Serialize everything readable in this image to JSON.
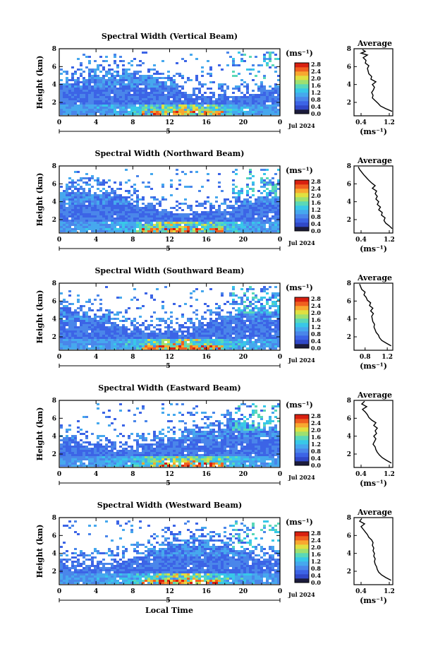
{
  "figure": {
    "xlabel_bottom": "Local Time"
  },
  "colorbar": {
    "unit": "(ms⁻¹)",
    "colors": [
      "#1c1c3c",
      "#3048c8",
      "#3c64e6",
      "#4a86ea",
      "#46a8ee",
      "#38c8e8",
      "#5ad8b8",
      "#9ee070",
      "#e0e040",
      "#f8a830",
      "#f06020",
      "#d82010"
    ]
  },
  "chart_data": [
    {
      "type": "heatmap",
      "title": "Spectral Width (Vertical Beam)",
      "ylabel": "Height (km)",
      "y_ticks": [
        "2",
        "4",
        "6",
        "8"
      ],
      "x_ticks": [
        "0",
        "4",
        "8",
        "12",
        "16",
        "20",
        "0"
      ],
      "day_label": "5",
      "date_label": "Jul 2024",
      "colorbar_ticks": [
        "2.8",
        "2.4",
        "2.0",
        "1.6",
        "1.2",
        "0.8",
        "0.4",
        "0.0"
      ],
      "xlim": [
        0,
        24
      ],
      "ylim": [
        0.5,
        8
      ],
      "average": {
        "title": "Average",
        "x_ticks": [
          "0.4",
          "1.2"
        ],
        "xlabel": "(ms⁻¹)",
        "y_ticks": [
          "2",
          "4",
          "6",
          "8"
        ],
        "xlim": [
          0.2,
          1.3
        ],
        "profile": [
          {
            "h": 1.0,
            "v": 1.28
          },
          {
            "h": 1.3,
            "v": 1.1
          },
          {
            "h": 1.6,
            "v": 0.95
          },
          {
            "h": 1.9,
            "v": 0.88
          },
          {
            "h": 2.2,
            "v": 0.8
          },
          {
            "h": 2.5,
            "v": 0.72
          },
          {
            "h": 2.8,
            "v": 0.74
          },
          {
            "h": 3.1,
            "v": 0.7
          },
          {
            "h": 3.4,
            "v": 0.75
          },
          {
            "h": 3.7,
            "v": 0.78
          },
          {
            "h": 4.0,
            "v": 0.72
          },
          {
            "h": 4.3,
            "v": 0.82
          },
          {
            "h": 4.6,
            "v": 0.68
          },
          {
            "h": 4.9,
            "v": 0.7
          },
          {
            "h": 5.2,
            "v": 0.62
          },
          {
            "h": 5.5,
            "v": 0.6
          },
          {
            "h": 5.8,
            "v": 0.58
          },
          {
            "h": 6.1,
            "v": 0.62
          },
          {
            "h": 6.4,
            "v": 0.52
          },
          {
            "h": 6.7,
            "v": 0.54
          },
          {
            "h": 7.0,
            "v": 0.46
          },
          {
            "h": 7.3,
            "v": 0.58
          },
          {
            "h": 7.5,
            "v": 0.4
          },
          {
            "h": 7.7,
            "v": 0.52
          },
          {
            "h": 7.9,
            "v": 0.44
          }
        ]
      }
    },
    {
      "type": "heatmap",
      "title": "Spectral Width (Northward Beam)",
      "ylabel": "Height (km)",
      "y_ticks": [
        "2",
        "4",
        "6",
        "8"
      ],
      "x_ticks": [
        "0",
        "4",
        "8",
        "12",
        "16",
        "20",
        "0"
      ],
      "day_label": "5",
      "date_label": "Jul 2024",
      "colorbar_ticks": [
        "2.8",
        "2.4",
        "2.0",
        "1.6",
        "1.2",
        "0.8",
        "0.4",
        "0.0"
      ],
      "xlim": [
        0,
        24
      ],
      "ylim": [
        0.5,
        8
      ],
      "average": {
        "title": "Average",
        "x_ticks": [
          "0.4",
          "1.2"
        ],
        "xlabel": "(ms⁻¹)",
        "y_ticks": [
          "2",
          "4",
          "6",
          "8"
        ],
        "xlim": [
          0.2,
          1.3
        ],
        "profile": [
          {
            "h": 1.0,
            "v": 1.28
          },
          {
            "h": 1.3,
            "v": 1.2
          },
          {
            "h": 1.6,
            "v": 1.1
          },
          {
            "h": 1.9,
            "v": 1.05
          },
          {
            "h": 2.2,
            "v": 1.08
          },
          {
            "h": 2.5,
            "v": 0.98
          },
          {
            "h": 2.8,
            "v": 1.0
          },
          {
            "h": 3.1,
            "v": 0.9
          },
          {
            "h": 3.4,
            "v": 0.95
          },
          {
            "h": 3.7,
            "v": 0.86
          },
          {
            "h": 4.0,
            "v": 0.9
          },
          {
            "h": 4.3,
            "v": 0.82
          },
          {
            "h": 4.6,
            "v": 0.86
          },
          {
            "h": 4.9,
            "v": 0.8
          },
          {
            "h": 5.2,
            "v": 0.84
          },
          {
            "h": 5.5,
            "v": 0.72
          },
          {
            "h": 5.8,
            "v": 0.8
          },
          {
            "h": 6.1,
            "v": 0.7
          },
          {
            "h": 6.4,
            "v": 0.62
          },
          {
            "h": 6.7,
            "v": 0.55
          },
          {
            "h": 7.0,
            "v": 0.48
          },
          {
            "h": 7.3,
            "v": 0.42
          },
          {
            "h": 7.6,
            "v": 0.36
          },
          {
            "h": 7.9,
            "v": 0.32
          }
        ]
      }
    },
    {
      "type": "heatmap",
      "title": "Spectral Width (Southward Beam)",
      "ylabel": "Height (km)",
      "y_ticks": [
        "2",
        "4",
        "6",
        "8"
      ],
      "x_ticks": [
        "0",
        "4",
        "8",
        "12",
        "16",
        "20",
        "0"
      ],
      "day_label": "5",
      "date_label": "Jul 2024",
      "colorbar_ticks": [
        "2.8",
        "2.4",
        "2.0",
        "1.6",
        "1.2",
        "0.8",
        "0.4",
        "0.0"
      ],
      "xlim": [
        0,
        24
      ],
      "ylim": [
        0.5,
        8
      ],
      "average": {
        "title": "Average",
        "x_ticks": [
          "0.8",
          "1.2"
        ],
        "xlabel": "(ms⁻¹)",
        "y_ticks": [
          "2",
          "4",
          "6",
          "8"
        ],
        "xlim": [
          0.6,
          1.3
        ],
        "profile": [
          {
            "h": 1.0,
            "v": 1.27
          },
          {
            "h": 1.3,
            "v": 1.18
          },
          {
            "h": 1.6,
            "v": 1.1
          },
          {
            "h": 1.9,
            "v": 1.06
          },
          {
            "h": 2.2,
            "v": 1.04
          },
          {
            "h": 2.5,
            "v": 1.0
          },
          {
            "h": 2.8,
            "v": 0.98
          },
          {
            "h": 3.1,
            "v": 0.96
          },
          {
            "h": 3.4,
            "v": 0.97
          },
          {
            "h": 3.7,
            "v": 0.94
          },
          {
            "h": 4.0,
            "v": 0.93
          },
          {
            "h": 4.3,
            "v": 0.92
          },
          {
            "h": 4.6,
            "v": 0.95
          },
          {
            "h": 4.9,
            "v": 0.9
          },
          {
            "h": 5.2,
            "v": 0.94
          },
          {
            "h": 5.5,
            "v": 0.88
          },
          {
            "h": 5.8,
            "v": 0.9
          },
          {
            "h": 6.1,
            "v": 0.84
          },
          {
            "h": 6.4,
            "v": 0.82
          },
          {
            "h": 6.7,
            "v": 0.78
          },
          {
            "h": 7.0,
            "v": 0.8
          },
          {
            "h": 7.3,
            "v": 0.74
          },
          {
            "h": 7.6,
            "v": 0.72
          },
          {
            "h": 7.9,
            "v": 0.7
          }
        ]
      }
    },
    {
      "type": "heatmap",
      "title": "Spectral Width (Eastward Beam)",
      "ylabel": "Height (km)",
      "y_ticks": [
        "2",
        "4",
        "6",
        "8"
      ],
      "x_ticks": [
        "0",
        "4",
        "8",
        "12",
        "16",
        "20",
        "0"
      ],
      "day_label": "5",
      "date_label": "Jul 2024",
      "colorbar_ticks": [
        "2.8",
        "2.4",
        "2.0",
        "1.6",
        "1.2",
        "0.8",
        "0.4",
        "0.0"
      ],
      "xlim": [
        0,
        24
      ],
      "ylim": [
        0.5,
        8
      ],
      "average": {
        "title": "Average",
        "x_ticks": [
          "0.4",
          "1.2"
        ],
        "xlabel": "(ms⁻¹)",
        "y_ticks": [
          "2",
          "4",
          "6",
          "8"
        ],
        "xlim": [
          0.2,
          1.3
        ],
        "profile": [
          {
            "h": 1.0,
            "v": 1.26
          },
          {
            "h": 1.3,
            "v": 1.12
          },
          {
            "h": 1.6,
            "v": 1.0
          },
          {
            "h": 1.9,
            "v": 0.92
          },
          {
            "h": 2.2,
            "v": 0.86
          },
          {
            "h": 2.5,
            "v": 0.82
          },
          {
            "h": 2.8,
            "v": 0.8
          },
          {
            "h": 3.1,
            "v": 0.74
          },
          {
            "h": 3.4,
            "v": 0.78
          },
          {
            "h": 3.7,
            "v": 0.82
          },
          {
            "h": 4.0,
            "v": 0.76
          },
          {
            "h": 4.3,
            "v": 0.84
          },
          {
            "h": 4.6,
            "v": 0.8
          },
          {
            "h": 4.9,
            "v": 0.86
          },
          {
            "h": 5.2,
            "v": 0.76
          },
          {
            "h": 5.5,
            "v": 0.82
          },
          {
            "h": 5.8,
            "v": 0.7
          },
          {
            "h": 6.1,
            "v": 0.62
          },
          {
            "h": 6.4,
            "v": 0.58
          },
          {
            "h": 6.7,
            "v": 0.52
          },
          {
            "h": 7.0,
            "v": 0.44
          },
          {
            "h": 7.3,
            "v": 0.56
          },
          {
            "h": 7.6,
            "v": 0.42
          },
          {
            "h": 7.9,
            "v": 0.5
          }
        ]
      }
    },
    {
      "type": "heatmap",
      "title": "Spectral Width (Westward Beam)",
      "ylabel": "Height (km)",
      "y_ticks": [
        "2",
        "4",
        "6",
        "8"
      ],
      "x_ticks": [
        "0",
        "4",
        "8",
        "12",
        "16",
        "20",
        "0"
      ],
      "day_label": "5",
      "date_label": "Jul 2024",
      "colorbar_ticks": [
        "2.8",
        "2.4",
        "2.0",
        "1.6",
        "1.2",
        "0.8",
        "0.4",
        "0.0"
      ],
      "xlim": [
        0,
        24
      ],
      "ylim": [
        0.5,
        8
      ],
      "average": {
        "title": "Average",
        "x_ticks": [
          "0.4",
          "1.2"
        ],
        "xlabel": "(ms⁻¹)",
        "y_ticks": [
          "2",
          "4",
          "6",
          "8"
        ],
        "xlim": [
          0.2,
          1.3
        ],
        "profile": [
          {
            "h": 1.0,
            "v": 1.25
          },
          {
            "h": 1.3,
            "v": 1.1
          },
          {
            "h": 1.6,
            "v": 0.98
          },
          {
            "h": 1.9,
            "v": 0.9
          },
          {
            "h": 2.2,
            "v": 0.86
          },
          {
            "h": 2.5,
            "v": 0.84
          },
          {
            "h": 2.8,
            "v": 0.8
          },
          {
            "h": 3.1,
            "v": 0.78
          },
          {
            "h": 3.4,
            "v": 0.8
          },
          {
            "h": 3.7,
            "v": 0.76
          },
          {
            "h": 4.0,
            "v": 0.78
          },
          {
            "h": 4.3,
            "v": 0.74
          },
          {
            "h": 4.6,
            "v": 0.76
          },
          {
            "h": 4.9,
            "v": 0.72
          },
          {
            "h": 5.2,
            "v": 0.74
          },
          {
            "h": 5.5,
            "v": 0.7
          },
          {
            "h": 5.8,
            "v": 0.62
          },
          {
            "h": 6.1,
            "v": 0.58
          },
          {
            "h": 6.4,
            "v": 0.52
          },
          {
            "h": 6.7,
            "v": 0.46
          },
          {
            "h": 7.0,
            "v": 0.4
          },
          {
            "h": 7.3,
            "v": 0.5
          },
          {
            "h": 7.6,
            "v": 0.36
          },
          {
            "h": 7.9,
            "v": 0.42
          }
        ]
      }
    }
  ]
}
